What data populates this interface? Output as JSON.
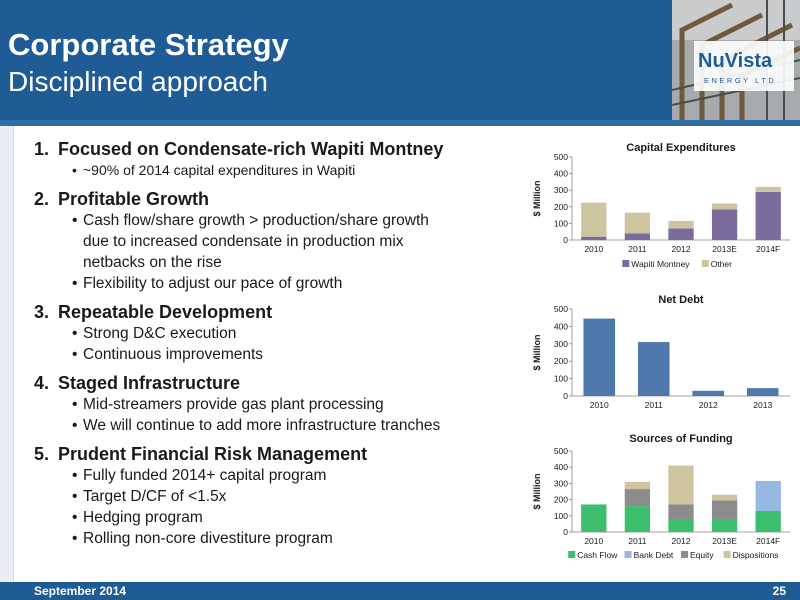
{
  "header": {
    "title": "Corporate Strategy",
    "subtitle": "Disciplined approach"
  },
  "logo": {
    "name": "NuVista",
    "tagline": "ENERGY LTD"
  },
  "sections": [
    {
      "number": "1.",
      "title": "Focused on Condensate-rich Wapiti Montney",
      "bullets": [
        "~90% of 2014 capital expenditures in Wapiti"
      ]
    },
    {
      "number": "2.",
      "title": "Profitable Growth",
      "bullets": [
        "Cash flow/share growth > production/share growth",
        "Flexibility to adjust our pace of growth"
      ],
      "bullet_continuation": [
        "due to increased condensate in production mix",
        "netbacks on the rise"
      ]
    },
    {
      "number": "3.",
      "title": "Repeatable Development",
      "bullets": [
        "Strong D&C execution",
        "Continuous improvements"
      ]
    },
    {
      "number": "4.",
      "title": "Staged Infrastructure",
      "bullets": [
        "Mid-streamers provide gas plant processing",
        "We will continue to add more infrastructure tranches"
      ]
    },
    {
      "number": "5.",
      "title": "Prudent Financial Risk Management",
      "bullets": [
        "Fully funded 2014+ capital program",
        "Target D/CF of <1.5x",
        "Hedging program",
        "Rolling non-core divestiture program"
      ]
    }
  ],
  "footer": {
    "date": "September 2014",
    "page": "25"
  },
  "colors": {
    "header": "#1f5c96",
    "wapiti": "#7a6d9e",
    "other": "#cfc4a0",
    "net_debt": "#4f79ad",
    "cash_flow": "#3cbf6c",
    "bank_debt": "#95b9e3",
    "equity": "#8c8c8c",
    "dispositions": "#cfc4a0"
  },
  "chart_data": [
    {
      "type": "bar",
      "stacked": true,
      "title": "Capital Expenditures",
      "ylabel": "$ Million",
      "ylim": [
        0,
        500
      ],
      "yticks": [
        "0",
        "100",
        "200",
        "300",
        "400",
        "500"
      ],
      "categories": [
        "2010",
        "2011",
        "2012",
        "2013E",
        "2014F"
      ],
      "series": [
        {
          "name": "Wapiti Montney",
          "values": [
            20,
            40,
            70,
            185,
            290
          ]
        },
        {
          "name": "Other",
          "values": [
            205,
            125,
            45,
            35,
            30
          ]
        }
      ],
      "legend": "bottom",
      "grid": false
    },
    {
      "type": "bar",
      "stacked": false,
      "title": "Net Debt",
      "ylabel": "$ Million",
      "ylim": [
        0,
        500
      ],
      "yticks": [
        "0",
        "100",
        "200",
        "300",
        "400",
        "500"
      ],
      "categories": [
        "2010",
        "2011",
        "2012",
        "2013"
      ],
      "series": [
        {
          "values": [
            445,
            310,
            30,
            45
          ]
        }
      ],
      "grid": false
    },
    {
      "type": "bar",
      "stacked": true,
      "title": "Sources of Funding",
      "ylabel": "$ Million",
      "ylim": [
        0,
        500
      ],
      "yticks": [
        "0",
        "100",
        "200",
        "300",
        "400",
        "500"
      ],
      "categories": [
        "2010",
        "2011",
        "2012",
        "2013E",
        "2014F"
      ],
      "series": [
        {
          "name": "Cash Flow",
          "values": [
            170,
            160,
            80,
            80,
            130
          ]
        },
        {
          "name": "Bank Debt",
          "values": [
            0,
            0,
            0,
            0,
            185
          ]
        },
        {
          "name": "Equity",
          "values": [
            0,
            105,
            90,
            115,
            0
          ]
        },
        {
          "name": "Dispositions",
          "values": [
            0,
            45,
            240,
            35,
            0
          ]
        }
      ],
      "legend": "bottom",
      "grid": false
    }
  ]
}
